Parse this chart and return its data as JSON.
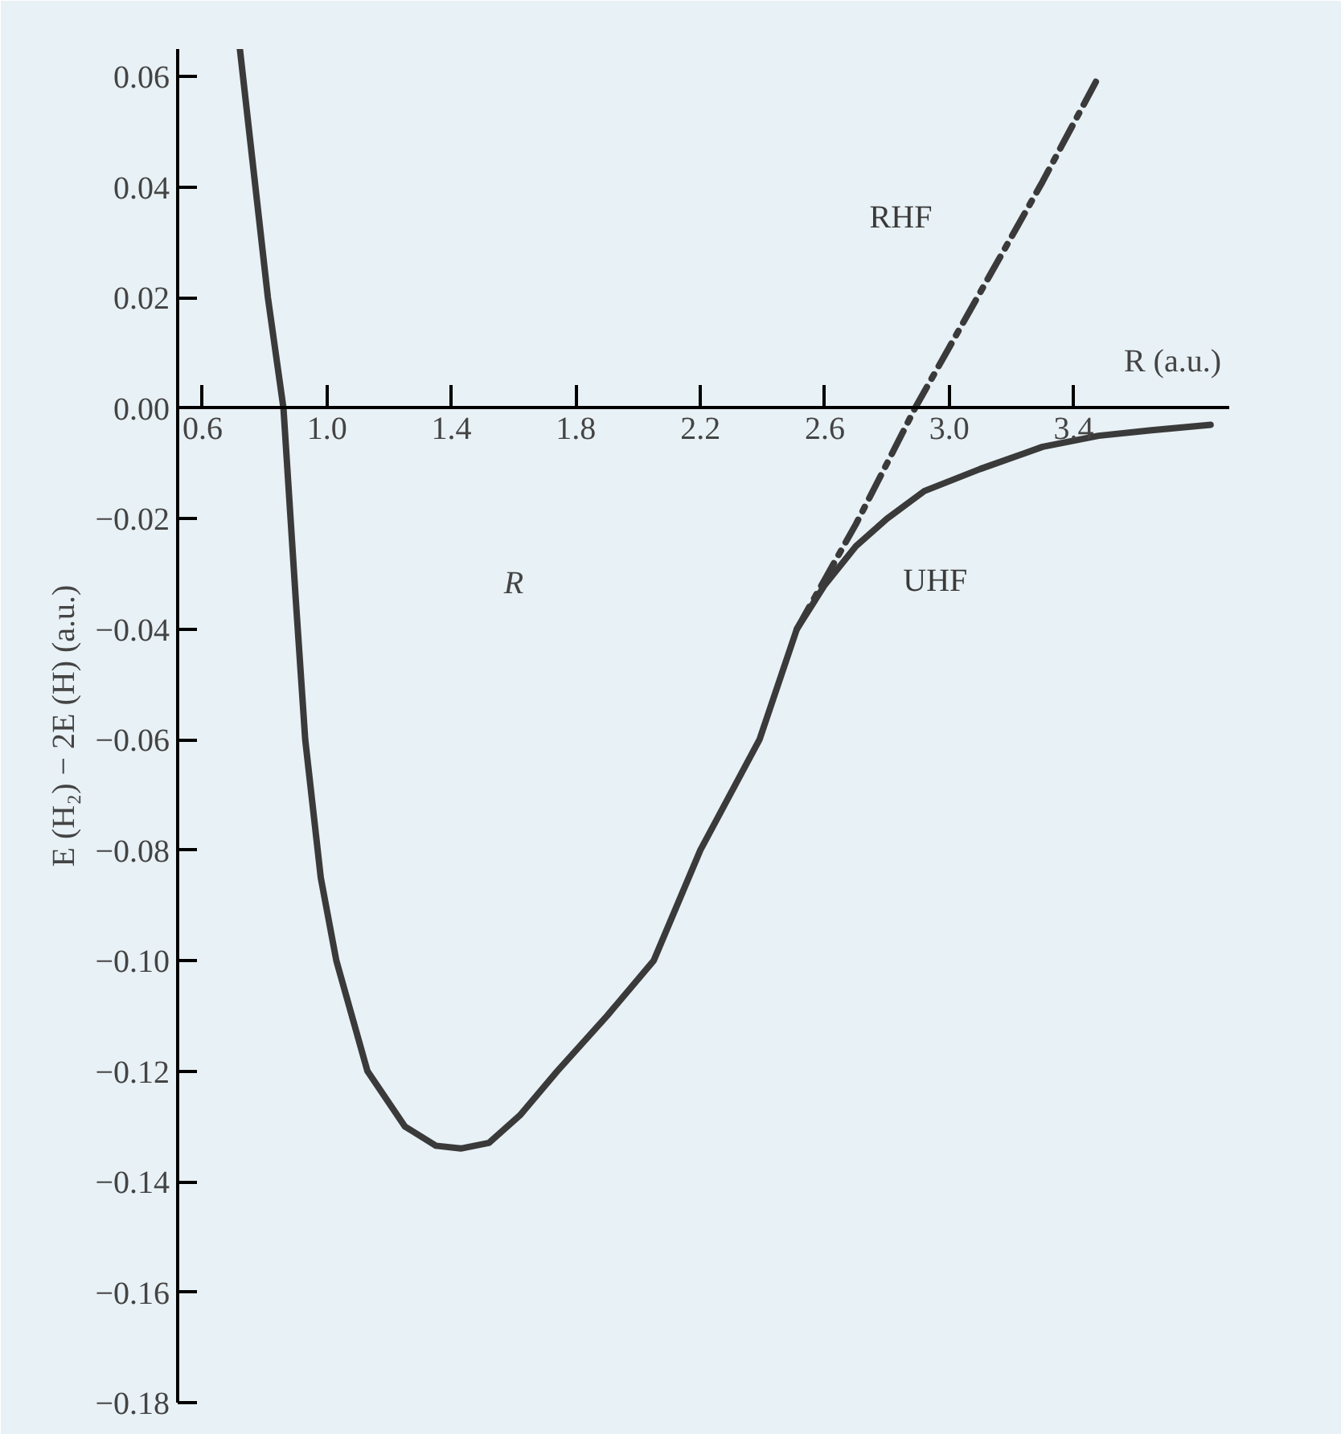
{
  "chart_data": {
    "type": "line",
    "xlabel": "R (a.u.)",
    "ylabel": "E (H₂) − 2E (H) (a.u.)",
    "xlim": [
      0.52,
      3.9
    ],
    "ylim": [
      -0.18,
      0.065
    ],
    "xticks": [
      {
        "value": 0.6,
        "label": "0.6"
      },
      {
        "value": 1.0,
        "label": "1.0"
      },
      {
        "value": 1.4,
        "label": "1.4"
      },
      {
        "value": 1.8,
        "label": "1.8"
      },
      {
        "value": 2.2,
        "label": "2.2"
      },
      {
        "value": 2.6,
        "label": "2.6"
      },
      {
        "value": 3.0,
        "label": "3.0"
      },
      {
        "value": 3.4,
        "label": "3.4"
      }
    ],
    "yticks": [
      {
        "value": 0.06,
        "label": "0.06"
      },
      {
        "value": 0.04,
        "label": "0.04"
      },
      {
        "value": 0.02,
        "label": "0.02"
      },
      {
        "value": 0,
        "label": "0.00"
      },
      {
        "value": -0.02,
        "label": "−0.02"
      },
      {
        "value": -0.04,
        "label": "−0.04"
      },
      {
        "value": -0.06,
        "label": "−0.06"
      },
      {
        "value": -0.08,
        "label": "−0.08"
      },
      {
        "value": -0.1,
        "label": "−0.10"
      },
      {
        "value": -0.12,
        "label": "−0.12"
      },
      {
        "value": -0.14,
        "label": "−0.14"
      },
      {
        "value": -0.16,
        "label": "−0.16"
      },
      {
        "value": -0.18,
        "label": "−0.18"
      }
    ],
    "grid": false,
    "legend": false,
    "annotations": [
      "R"
    ],
    "series": [
      {
        "name": "UHF",
        "color": "#3a3a3a",
        "line_style": "solid",
        "x": [
          0.72,
          0.76,
          0.81,
          0.86,
          0.9,
          0.93,
          0.98,
          1.03,
          1.13,
          1.25,
          1.35,
          1.43,
          1.52,
          1.62,
          1.74,
          1.9,
          2.05,
          2.2,
          2.39,
          2.51,
          2.6,
          2.7,
          2.8,
          2.92,
          3.1,
          3.3,
          3.48,
          3.65,
          3.84
        ],
        "values": [
          0.065,
          0.045,
          0.02,
          0.0,
          -0.035,
          -0.06,
          -0.085,
          -0.1,
          -0.12,
          -0.13,
          -0.1335,
          -0.134,
          -0.133,
          -0.128,
          -0.12,
          -0.11,
          -0.1,
          -0.08,
          -0.06,
          -0.04,
          -0.032,
          -0.025,
          -0.02,
          -0.015,
          -0.011,
          -0.007,
          -0.005,
          -0.004,
          -0.003
        ]
      },
      {
        "name": "RHF",
        "color": "#3a3a3a",
        "line_style": "dashed",
        "x": [
          2.51,
          2.6,
          2.7,
          2.8,
          2.89,
          3.0,
          3.1,
          3.3,
          3.48
        ],
        "values": [
          -0.04,
          -0.031,
          -0.021,
          -0.01,
          0.0,
          0.011,
          0.021,
          0.041,
          0.06
        ]
      }
    ]
  }
}
